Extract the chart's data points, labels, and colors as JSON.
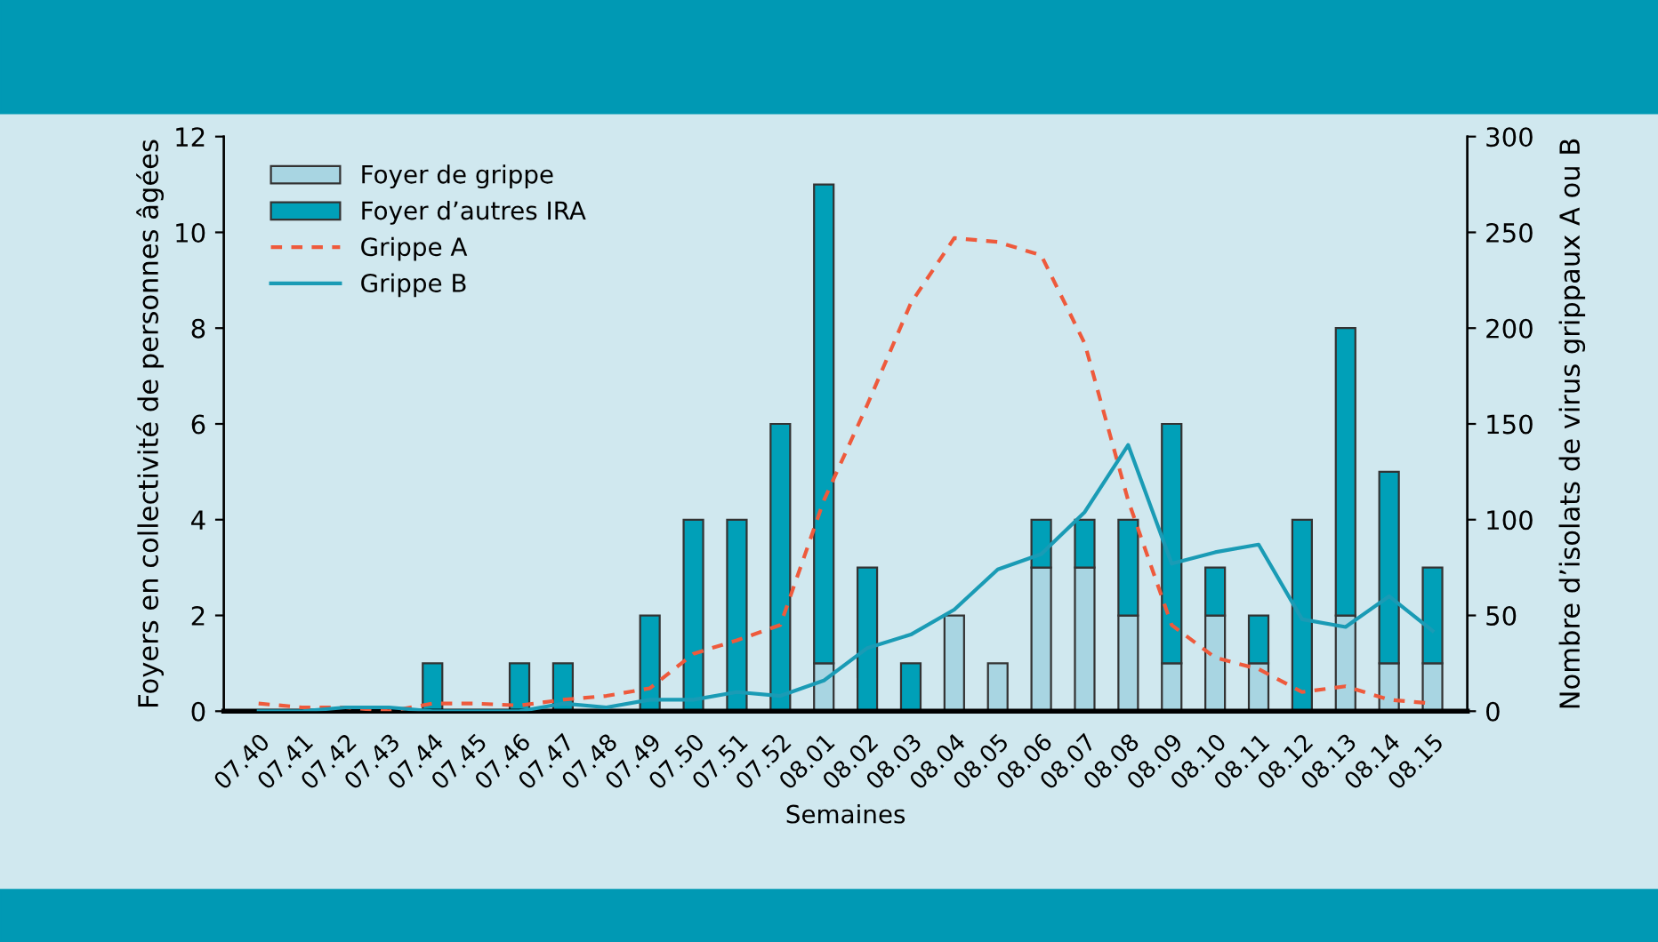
{
  "chart_data": {
    "type": "bar",
    "stacked": true,
    "xlabel": "Semaines",
    "ylabel": "Foyers en collectivité de personnes âgées",
    "y2label": "Nombre d’isolats de virus grippaux A ou B",
    "categories": [
      "07.40",
      "07.41",
      "07.42",
      "07.43",
      "07.44",
      "07.45",
      "07.46",
      "07.47",
      "07.48",
      "07.49",
      "07.50",
      "07.51",
      "07.52",
      "08.01",
      "08.02",
      "08.03",
      "08.04",
      "08.05",
      "08.06",
      "08.07",
      "08.08",
      "08.09",
      "08.10",
      "08.11",
      "08.12",
      "08.13",
      "08.14",
      "08.15"
    ],
    "series": [
      {
        "name": "Foyer de grippe",
        "color": "#a8d5e2",
        "values": [
          null,
          null,
          null,
          null,
          null,
          null,
          null,
          null,
          null,
          null,
          null,
          null,
          null,
          1,
          null,
          null,
          2,
          1,
          3,
          3,
          2,
          1,
          2,
          1,
          null,
          2,
          1,
          1
        ]
      },
      {
        "name": "Foyer d’autres IRA",
        "color": "#00a0b8",
        "values": [
          null,
          null,
          null,
          null,
          1,
          null,
          1,
          1,
          null,
          2,
          4,
          4,
          6,
          10,
          3,
          1,
          null,
          null,
          1,
          1,
          2,
          5,
          1,
          1,
          4,
          6,
          4,
          2
        ]
      },
      {
        "name": "Grippe A",
        "type": "line",
        "axis": "y2",
        "line_style": "dashed",
        "color": "#ee5a3c",
        "values": [
          4,
          2,
          2,
          0,
          4,
          4,
          3,
          6,
          8,
          12,
          30,
          37,
          45,
          110,
          160,
          213,
          247,
          245,
          238,
          192,
          110,
          45,
          28,
          22,
          10,
          13,
          6,
          4
        ]
      },
      {
        "name": "Grippe B",
        "type": "line",
        "axis": "y2",
        "line_style": "solid",
        "color": "#1a9bb5",
        "values": [
          0,
          0,
          2,
          2,
          0,
          0,
          0,
          4,
          2,
          6,
          6,
          10,
          8,
          16,
          33,
          40,
          53,
          74,
          82,
          104,
          139,
          77,
          83,
          87,
          48,
          44,
          60,
          42
        ]
      }
    ],
    "ylim": [
      0,
      12
    ],
    "yticks": [
      0,
      2,
      4,
      6,
      8,
      10,
      12
    ],
    "y2lim": [
      0,
      300
    ],
    "y2ticks": [
      0,
      50,
      100,
      150,
      200,
      250,
      300
    ],
    "grid": false,
    "legend": "top left",
    "marker": "none"
  }
}
